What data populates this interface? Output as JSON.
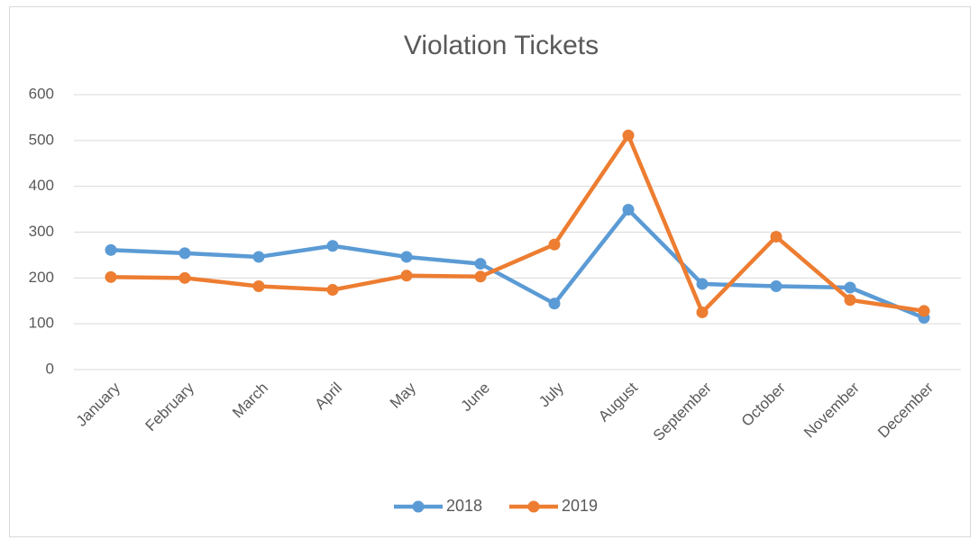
{
  "chart_data": {
    "type": "line",
    "title": "Violation Tickets",
    "categories": [
      "January",
      "February",
      "March",
      "April",
      "May",
      "June",
      "July",
      "August",
      "September",
      "October",
      "November",
      "December"
    ],
    "series": [
      {
        "name": "2018",
        "color": "#5b9bd5",
        "values": [
          261,
          254,
          246,
          270,
          246,
          231,
          144,
          349,
          187,
          182,
          179,
          113
        ]
      },
      {
        "name": "2019",
        "color": "#ed7d31",
        "values": [
          202,
          200,
          182,
          174,
          205,
          203,
          273,
          511,
          125,
          290,
          152,
          128
        ]
      }
    ],
    "ylim": [
      0,
      600
    ],
    "yticks": [
      0,
      100,
      200,
      300,
      400,
      500,
      600
    ],
    "grid": true,
    "legend": "bottom"
  }
}
